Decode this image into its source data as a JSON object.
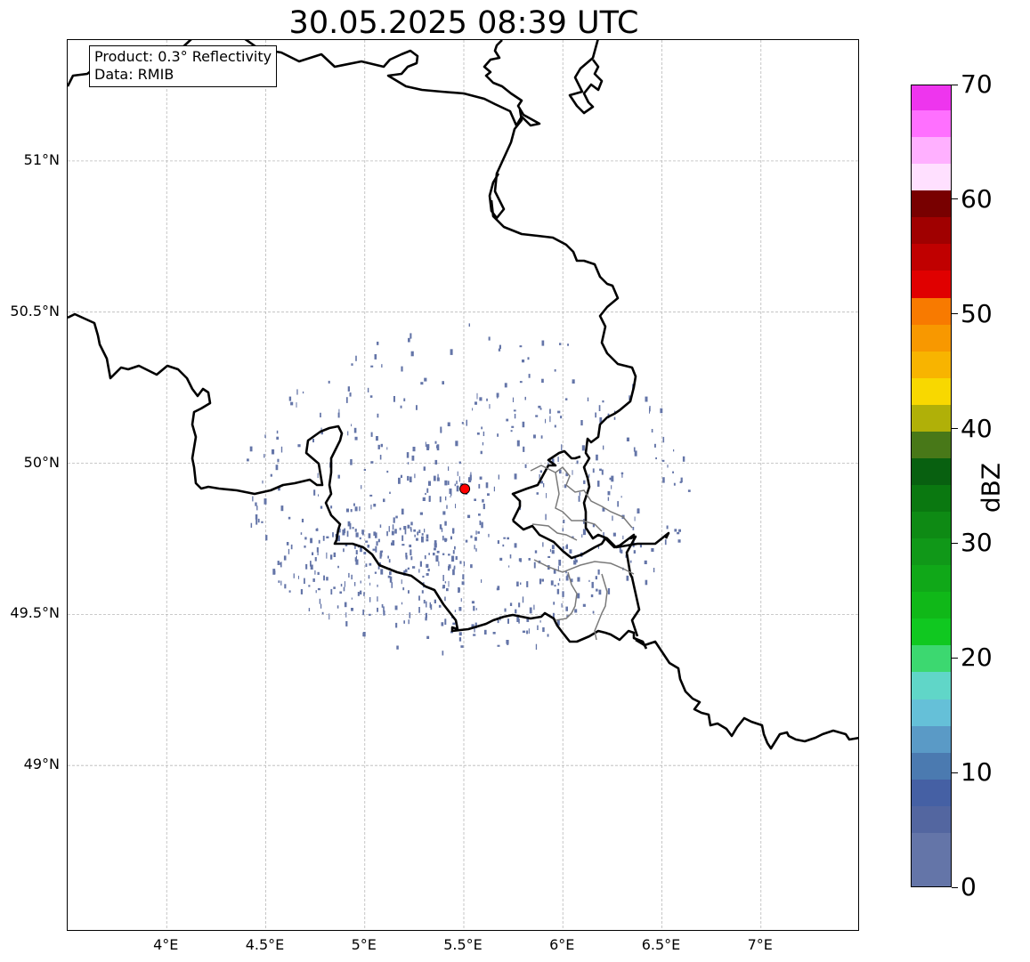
{
  "title": "30.05.2025 08:39 UTC",
  "info_box": {
    "line1": "Product: 0.3° Reflectivity",
    "line2": "Data: RMIB"
  },
  "map": {
    "lon_range": [
      3.5,
      7.5
    ],
    "lat_range": [
      48.45,
      51.4
    ],
    "x_ticks": [
      "4°E",
      "4.5°E",
      "5°E",
      "5.5°E",
      "6°E",
      "6.5°E",
      "7°E"
    ],
    "y_ticks": [
      "49°N",
      "49.5°N",
      "50°N",
      "50.5°N",
      "51°N"
    ],
    "radar_site": {
      "lon": 5.505,
      "lat": 49.915,
      "color": "#ff0000"
    },
    "echo_color": "#6475a8"
  },
  "colorbar": {
    "label": "dBZ",
    "tick_labels": [
      "0",
      "10",
      "20",
      "30",
      "40",
      "50",
      "60",
      "70"
    ],
    "range": [
      0,
      70
    ],
    "colors": [
      "#6475a8",
      "#5366a0",
      "#4560a4",
      "#4b7ab0",
      "#5a9ac6",
      "#65c0d8",
      "#60d6c8",
      "#3cd870",
      "#10c820",
      "#10b818",
      "#10a818",
      "#109818",
      "#0e8a14",
      "#0a7810",
      "#086010",
      "#487818",
      "#b0b008",
      "#f8d800",
      "#f8b400",
      "#f89800",
      "#f87a00",
      "#e00000",
      "#c00000",
      "#a00000",
      "#780000",
      "#ffe0ff",
      "#ffb0ff",
      "#ff70ff",
      "#ee35ee"
    ]
  }
}
